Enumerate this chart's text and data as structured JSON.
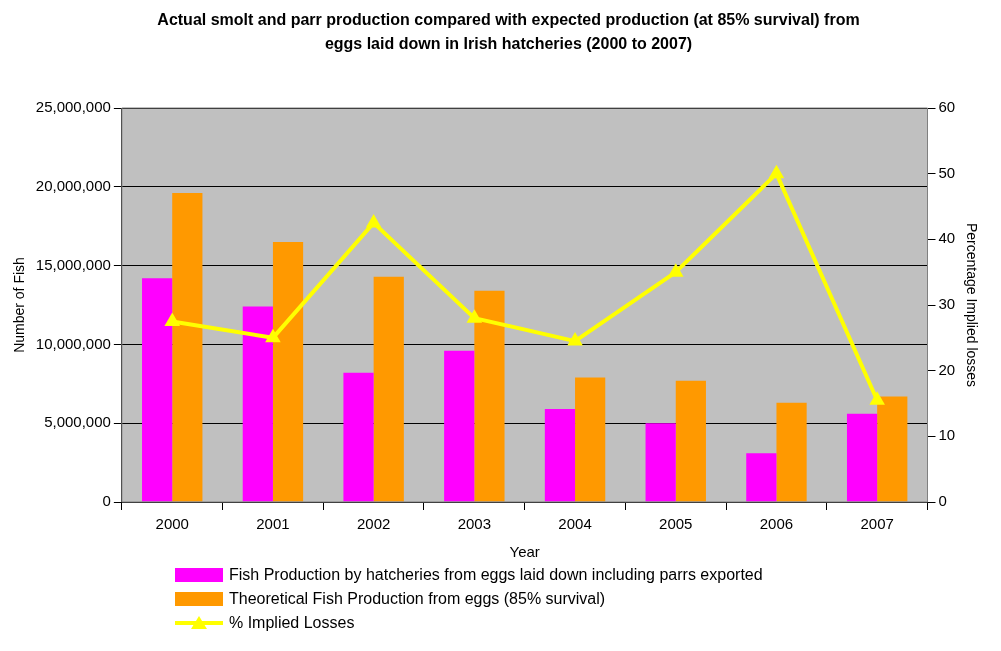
{
  "chart_data": {
    "type": "bar",
    "title": "Actual smolt and parr production compared with expected production (at 85% survival) from eggs laid down in Irish hatcheries (2000 to 2007)",
    "xlabel": "Year",
    "ylabel": "Number of Fish",
    "y2label": "Percentage Implied losses",
    "categories": [
      "2000",
      "2001",
      "2002",
      "2003",
      "2004",
      "2005",
      "2006",
      "2007"
    ],
    "series": [
      {
        "name": "Fish Production by hatcheries from eggs laid down including parrs exported",
        "color": "#ff00ff",
        "values": [
          14200000,
          12400000,
          8200000,
          9600000,
          5900000,
          5000000,
          3100000,
          5600000
        ]
      },
      {
        "name": "Theoretical Fish Production from eggs (85% survival)",
        "color": "#ff9900",
        "values": [
          19600000,
          16500000,
          14300000,
          13400000,
          7900000,
          7700000,
          6300000,
          6700000
        ]
      },
      {
        "name": "% Implied Losses",
        "type": "line",
        "axis": "y2",
        "color": "#ffff00",
        "marker": "triangle",
        "values": [
          27.5,
          25,
          42.5,
          28,
          24.5,
          35,
          50,
          15.5
        ]
      }
    ],
    "ylim": [
      0,
      25000000
    ],
    "yticks": [
      0,
      {
        "value": 5000000,
        "label": "5,000,000"
      },
      {
        "value": 10000000,
        "label": "10,000,000"
      },
      {
        "value": 15000000,
        "label": "15,000,000"
      },
      {
        "value": 20000000,
        "label": "20,000,000"
      },
      {
        "value": 25000000,
        "label": "25,000,000"
      }
    ],
    "y2lim": [
      0,
      60
    ],
    "y2ticks": [
      0,
      10,
      20,
      30,
      40,
      50,
      60
    ],
    "grid": "y",
    "legend": "bottom"
  }
}
